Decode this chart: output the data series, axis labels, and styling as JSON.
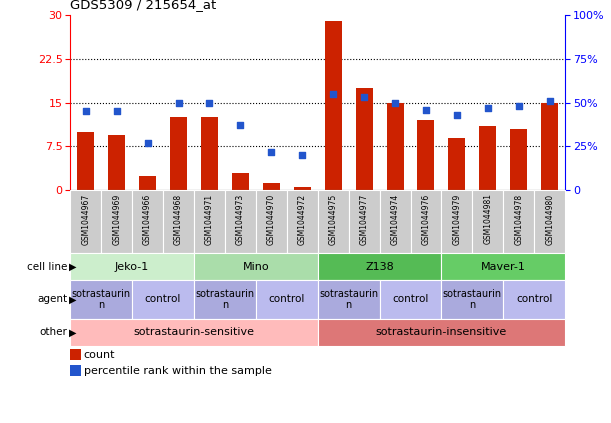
{
  "title": "GDS5309 / 215654_at",
  "samples": [
    "GSM1044967",
    "GSM1044969",
    "GSM1044966",
    "GSM1044968",
    "GSM1044971",
    "GSM1044973",
    "GSM1044970",
    "GSM1044972",
    "GSM1044975",
    "GSM1044977",
    "GSM1044974",
    "GSM1044976",
    "GSM1044979",
    "GSM1044981",
    "GSM1044978",
    "GSM1044980"
  ],
  "bar_values": [
    10.0,
    9.5,
    2.5,
    12.5,
    12.5,
    3.0,
    1.2,
    0.6,
    29.0,
    17.5,
    15.0,
    12.0,
    9.0,
    11.0,
    10.5,
    15.0
  ],
  "dot_values": [
    45,
    45,
    27,
    50,
    50,
    37,
    22,
    20,
    55,
    53,
    50,
    46,
    43,
    47,
    48,
    51
  ],
  "bar_color": "#cc2200",
  "dot_color": "#2255cc",
  "ylim_left": [
    0,
    30
  ],
  "ylim_right": [
    0,
    100
  ],
  "yticks_left": [
    0,
    7.5,
    15,
    22.5,
    30
  ],
  "yticks_right": [
    0,
    25,
    50,
    75,
    100
  ],
  "ytick_labels_left": [
    "0",
    "7.5",
    "15",
    "22.5",
    "30"
  ],
  "ytick_labels_right": [
    "0",
    "25%",
    "50%",
    "75%",
    "100%"
  ],
  "cell_lines": [
    {
      "label": "Jeko-1",
      "start": 0,
      "end": 4,
      "color": "#cceecc"
    },
    {
      "label": "Mino",
      "start": 4,
      "end": 8,
      "color": "#aaddaa"
    },
    {
      "label": "Z138",
      "start": 8,
      "end": 12,
      "color": "#55bb55"
    },
    {
      "label": "Maver-1",
      "start": 12,
      "end": 16,
      "color": "#66cc66"
    }
  ],
  "agents": [
    {
      "label": "sotrastaurin\nn",
      "start": 0,
      "end": 2,
      "color": "#aaaadd"
    },
    {
      "label": "control",
      "start": 2,
      "end": 4,
      "color": "#bbbbee"
    },
    {
      "label": "sotrastaurin\nn",
      "start": 4,
      "end": 6,
      "color": "#aaaadd"
    },
    {
      "label": "control",
      "start": 6,
      "end": 8,
      "color": "#bbbbee"
    },
    {
      "label": "sotrastaurin\nn",
      "start": 8,
      "end": 10,
      "color": "#aaaadd"
    },
    {
      "label": "control",
      "start": 10,
      "end": 12,
      "color": "#bbbbee"
    },
    {
      "label": "sotrastaurin",
      "start": 12,
      "end": 14,
      "color": "#aaaadd"
    },
    {
      "label": "control",
      "start": 14,
      "end": 16,
      "color": "#bbbbee"
    }
  ],
  "others": [
    {
      "label": "sotrastaurin-sensitive",
      "start": 0,
      "end": 8,
      "color": "#ffbbbb"
    },
    {
      "label": "sotrastaurin-insensitive",
      "start": 8,
      "end": 16,
      "color": "#dd7777"
    }
  ],
  "row_labels": [
    "cell line",
    "agent",
    "other"
  ],
  "legend_items": [
    {
      "color": "#cc2200",
      "label": "count"
    },
    {
      "color": "#2255cc",
      "label": "percentile rank within the sample"
    }
  ],
  "bg_color": "#ffffff",
  "plot_bg": "#ffffff",
  "grid_color": "#000000",
  "spine_color": "#000000"
}
